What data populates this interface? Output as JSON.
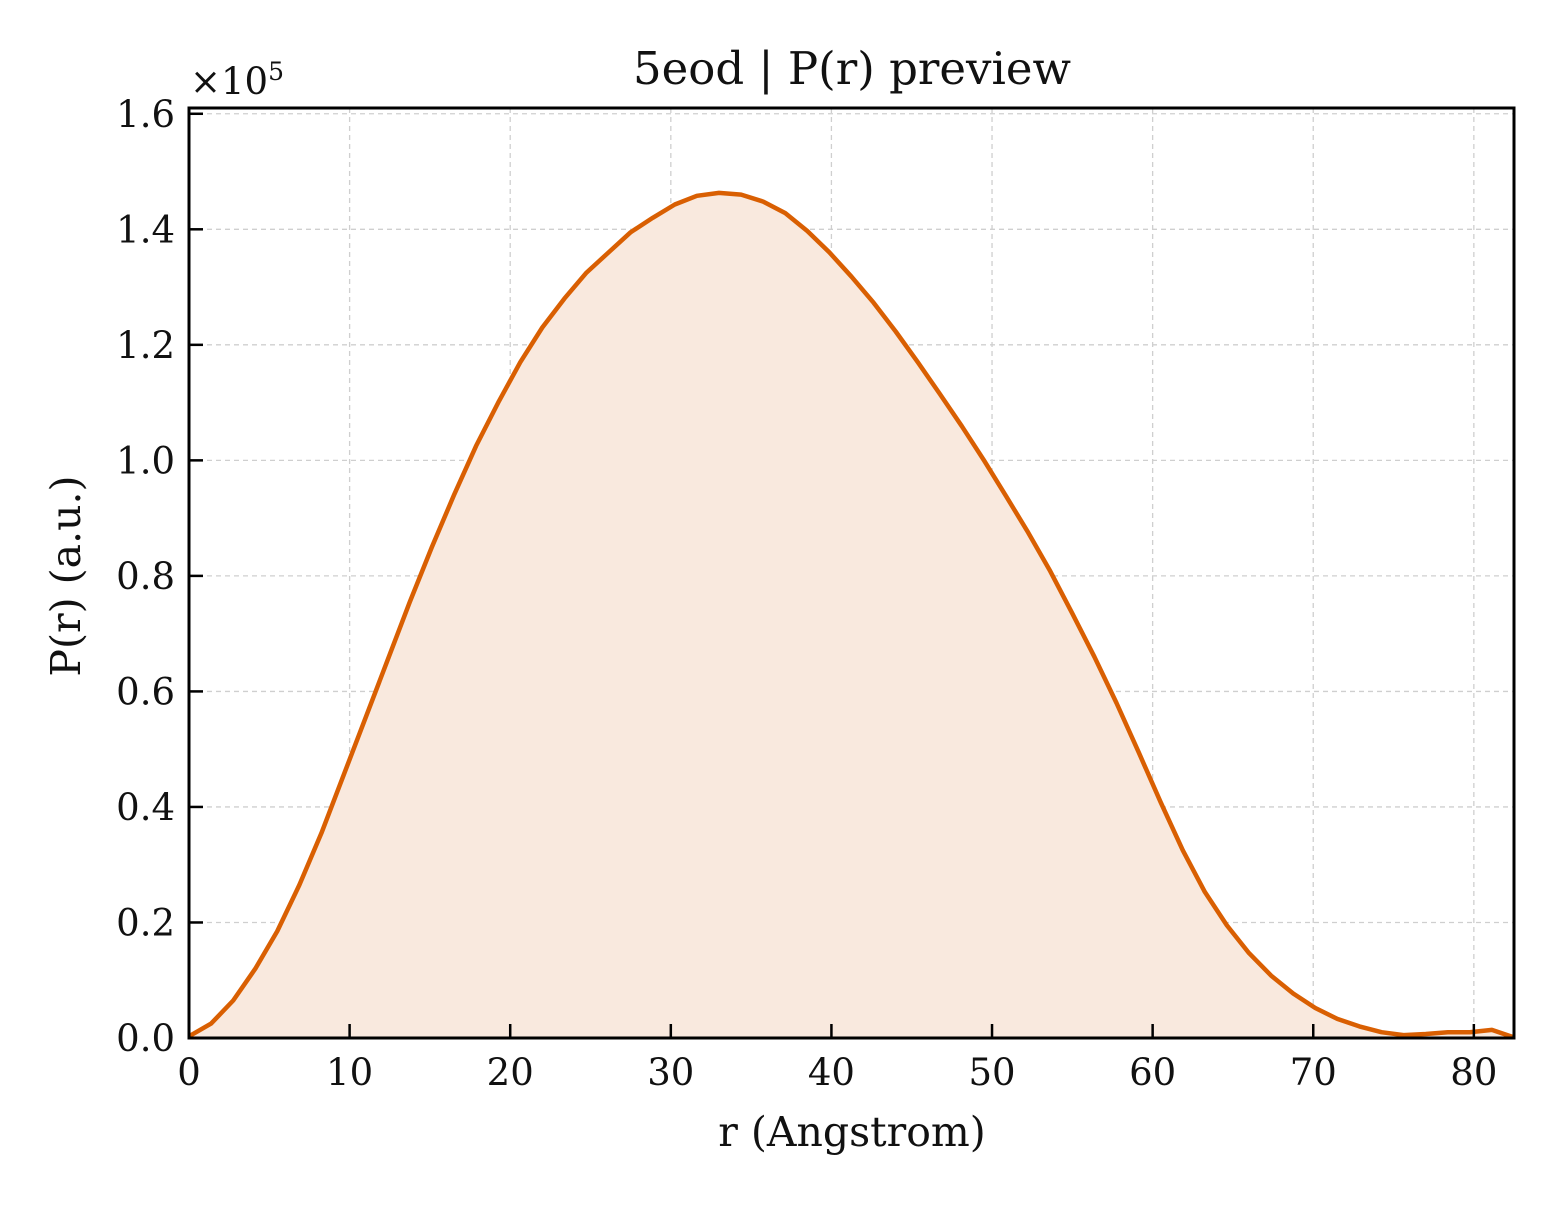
{
  "chart_data": {
    "type": "area",
    "title": "5eod | P(r) preview",
    "xlabel": "r (Angstrom)",
    "ylabel": "P(r) (a.u.)",
    "y_multiplier_label": "×10",
    "y_multiplier_exponent": "5",
    "xlim": [
      0,
      82.5
    ],
    "ylim": [
      0,
      161000
    ],
    "x_ticks": [
      0,
      10,
      20,
      30,
      40,
      50,
      60,
      70,
      80
    ],
    "x_tick_labels": [
      "0",
      "10",
      "20",
      "30",
      "40",
      "50",
      "60",
      "70",
      "80"
    ],
    "y_ticks": [
      0,
      20000,
      40000,
      60000,
      80000,
      100000,
      120000,
      140000,
      160000
    ],
    "y_tick_labels": [
      "0.0",
      "0.2",
      "0.4",
      "0.6",
      "0.8",
      "1.0",
      "1.2",
      "1.4",
      "1.6"
    ],
    "grid": true,
    "line_color": "#d95f02",
    "fill_color": "#f9e9de",
    "series": [
      {
        "x": [
          0,
          1.375,
          2.75,
          4.125,
          5.5,
          6.875,
          8.25,
          9.625,
          11,
          12.375,
          13.75,
          15.125,
          16.5,
          17.875,
          19.25,
          20.625,
          22,
          23.375,
          24.75,
          26.125,
          27.5,
          28.875,
          30.25,
          31.625,
          33,
          34.375,
          35.75,
          37.125,
          38.5,
          39.875,
          41.25,
          42.625,
          44,
          45.375,
          46.75,
          48.125,
          49.5,
          50.875,
          52.25,
          53.625,
          55,
          56.375,
          57.75,
          59.125,
          60.5,
          61.875,
          63.25,
          64.625,
          66,
          67.375,
          68.75,
          70.125,
          71.5,
          72.875,
          74.25,
          75.625,
          77,
          78.375,
          79.75,
          81.125,
          82.5
        ],
        "y": [
          300,
          2500,
          6500,
          12000,
          18500,
          26500,
          35500,
          45500,
          55500,
          65500,
          75500,
          85000,
          94000,
          102500,
          110000,
          117000,
          123000,
          128000,
          132500,
          136000,
          139500,
          142000,
          144300,
          145800,
          146300,
          146000,
          144800,
          142800,
          139700,
          136000,
          131800,
          127300,
          122300,
          117000,
          111500,
          105900,
          100000,
          93800,
          87500,
          80800,
          73500,
          66000,
          58000,
          49500,
          40800,
          32500,
          25300,
          19500,
          14700,
          10800,
          7700,
          5200,
          3300,
          2000,
          1000,
          500,
          700,
          1000,
          1000,
          1400,
          100
        ]
      }
    ]
  }
}
